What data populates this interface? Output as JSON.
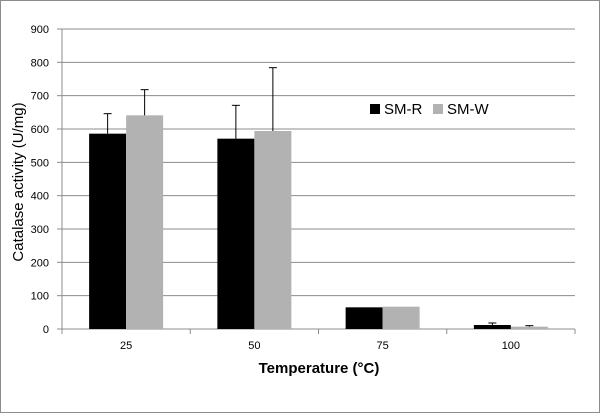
{
  "chart_data": {
    "type": "bar",
    "title": "",
    "xlabel": "Temperature (°C)",
    "ylabel": "Catalase activity (U/mg)",
    "categories": [
      "25",
      "50",
      "75",
      "100"
    ],
    "ylim": [
      0,
      900
    ],
    "yticks": [
      0,
      100,
      200,
      300,
      400,
      500,
      600,
      700,
      800,
      900
    ],
    "grid": "horizontal",
    "legend_position": "top-right",
    "series": [
      {
        "name": "SM-R",
        "color": "#000000",
        "values": [
          586,
          571,
          65,
          12
        ],
        "error": [
          60,
          100,
          0,
          6
        ]
      },
      {
        "name": "SM-W",
        "color": "#b2b2b2",
        "values": [
          641,
          594,
          67,
          7
        ],
        "error": [
          77,
          190,
          0,
          3
        ]
      }
    ]
  }
}
